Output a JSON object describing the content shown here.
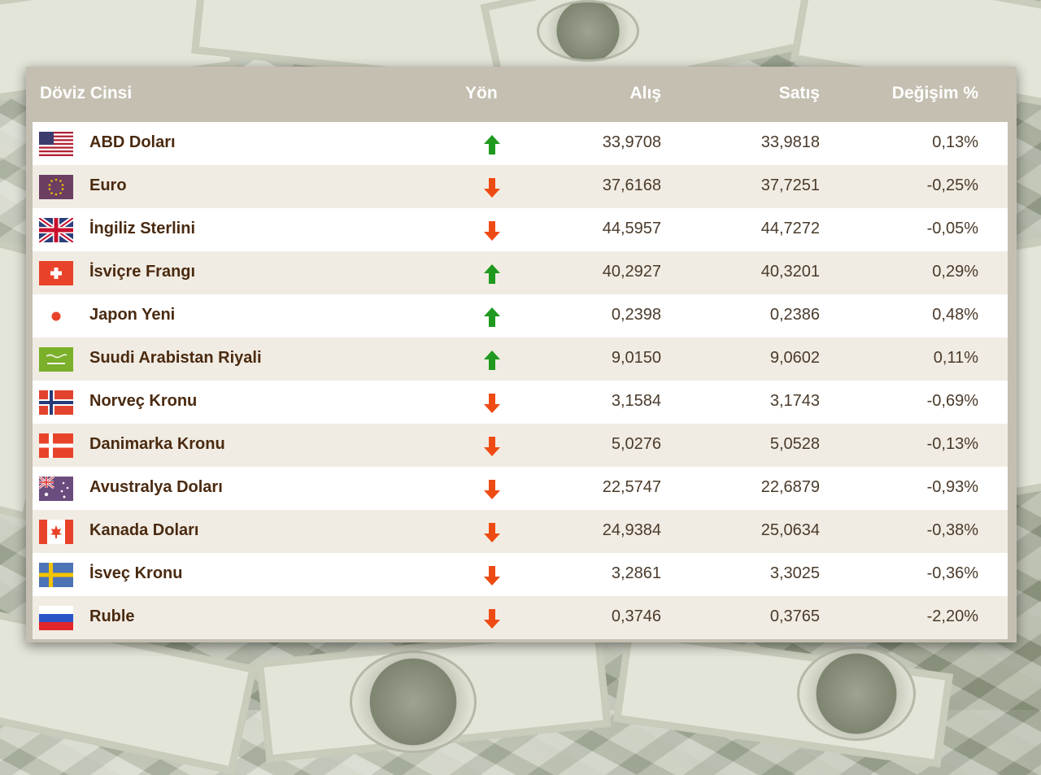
{
  "header": {
    "currency": "Döviz Cinsi",
    "direction": "Yön",
    "buy": "Alış",
    "sell": "Satış",
    "change": "Değişim %"
  },
  "colors": {
    "header_bg": "#c5bfb1",
    "up_arrow": "#1f9a1f",
    "down_arrow": "#ee4b14",
    "name_text": "#4a2a10"
  },
  "rows": [
    {
      "name": "ABD Doları",
      "flag": "us-flag-icon",
      "direction": "up",
      "buy": "33,9708",
      "sell": "33,9818",
      "change": "0,13%"
    },
    {
      "name": "Euro",
      "flag": "eu-flag-icon",
      "direction": "down",
      "buy": "37,6168",
      "sell": "37,7251",
      "change": "-0,25%"
    },
    {
      "name": "İngiliz Sterlini",
      "flag": "uk-flag-icon",
      "direction": "down",
      "buy": "44,5957",
      "sell": "44,7272",
      "change": "-0,05%"
    },
    {
      "name": "İsviçre Frangı",
      "flag": "ch-flag-icon",
      "direction": "up",
      "buy": "40,2927",
      "sell": "40,3201",
      "change": "0,29%"
    },
    {
      "name": "Japon Yeni",
      "flag": "jp-flag-icon",
      "direction": "up",
      "buy": "0,2398",
      "sell": "0,2386",
      "change": "0,48%"
    },
    {
      "name": "Suudi Arabistan Riyali",
      "flag": "sa-flag-icon",
      "direction": "up",
      "buy": "9,0150",
      "sell": "9,0602",
      "change": "0,11%"
    },
    {
      "name": "Norveç Kronu",
      "flag": "no-flag-icon",
      "direction": "down",
      "buy": "3,1584",
      "sell": "3,1743",
      "change": "-0,69%"
    },
    {
      "name": "Danimarka Kronu",
      "flag": "dk-flag-icon",
      "direction": "down",
      "buy": "5,0276",
      "sell": "5,0528",
      "change": "-0,13%"
    },
    {
      "name": "Avustralya Doları",
      "flag": "au-flag-icon",
      "direction": "down",
      "buy": "22,5747",
      "sell": "22,6879",
      "change": "-0,93%"
    },
    {
      "name": "Kanada Doları",
      "flag": "ca-flag-icon",
      "direction": "down",
      "buy": "24,9384",
      "sell": "25,0634",
      "change": "-0,38%"
    },
    {
      "name": "İsveç Kronu",
      "flag": "se-flag-icon",
      "direction": "down",
      "buy": "3,2861",
      "sell": "3,3025",
      "change": "-0,36%"
    },
    {
      "name": "Ruble",
      "flag": "ru-flag-icon",
      "direction": "down",
      "buy": "0,3746",
      "sell": "0,3765",
      "change": "-2,20%"
    }
  ]
}
